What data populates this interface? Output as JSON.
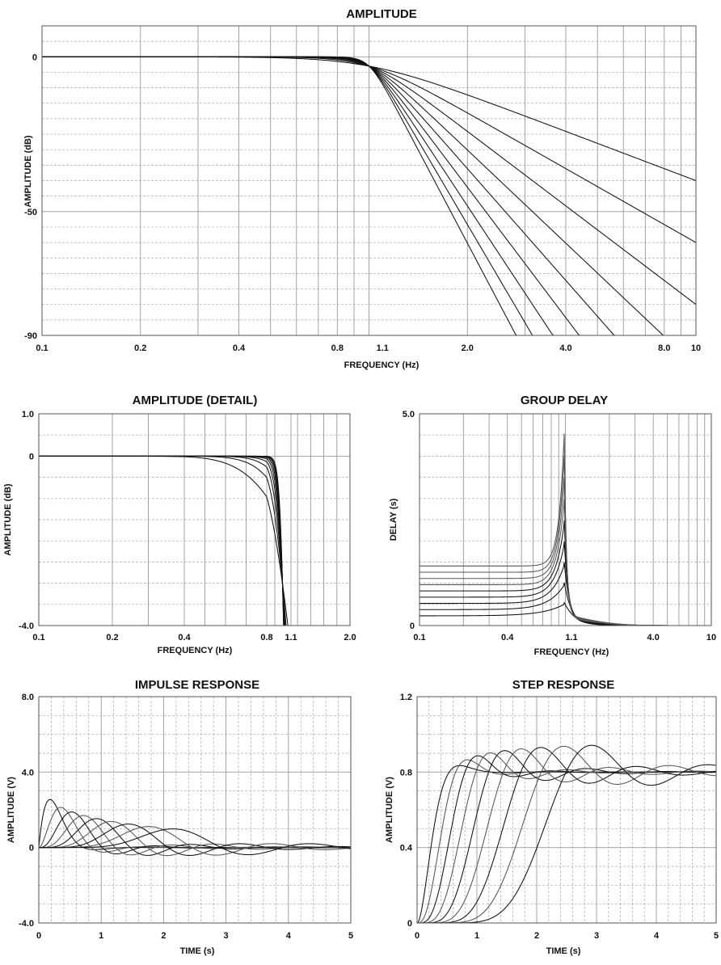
{
  "chart_data": [
    {
      "id": "amplitude",
      "type": "line",
      "title": "AMPLITUDE",
      "xlabel": "FREQUENCY (Hz)",
      "ylabel": "AMPLITUDE (dB)",
      "xscale": "log",
      "xlim": [
        0.1,
        10
      ],
      "ylim": [
        -90,
        10
      ],
      "x_ticks": [
        "0.1",
        "0.2",
        "0.4",
        "0.8",
        "1.1",
        "2.0",
        "4.0",
        "8.0",
        "10"
      ],
      "y_ticks": [
        "0",
        "-50",
        "-90"
      ],
      "grid": true,
      "series_orders": [
        2,
        3,
        4,
        5,
        6,
        7,
        8,
        9,
        10
      ]
    },
    {
      "id": "amplitude_detail",
      "type": "line",
      "title": "AMPLITUDE (DETAIL)",
      "xlabel": "FREQUENCY (Hz)",
      "ylabel": "AMPLITUDE (dB)",
      "xscale": "linear",
      "xlim": [
        0.1,
        2.0
      ],
      "ylim": [
        -4.0,
        1.0
      ],
      "x_ticks": [
        "0.1",
        "0.2",
        "0.4",
        "0.8",
        "1.1",
        "2.0"
      ],
      "y_ticks": [
        "1.0",
        "0",
        "-4.0"
      ],
      "grid": true,
      "series_orders": [
        2,
        3,
        4,
        5,
        6,
        7,
        8,
        9,
        10
      ]
    },
    {
      "id": "group_delay",
      "type": "line",
      "title": "GROUP DELAY",
      "xlabel": "FREQUENCY (Hz)",
      "ylabel": "DELAY (s)",
      "xscale": "log",
      "xlim": [
        0.1,
        10
      ],
      "ylim": [
        0,
        5.0
      ],
      "x_ticks": [
        "0.1",
        "0.4",
        "1.1",
        "4.0",
        "10"
      ],
      "y_ticks": [
        "5.0",
        "0"
      ],
      "grid": true,
      "series_orders": [
        2,
        3,
        4,
        5,
        6,
        7,
        8,
        9,
        10
      ]
    },
    {
      "id": "impulse_response",
      "type": "line",
      "title": "IMPULSE RESPONSE",
      "xlabel": "TIME (s)",
      "ylabel": "AMPLITUDE (V)",
      "xscale": "linear",
      "xlim": [
        0,
        5
      ],
      "ylim": [
        -4.0,
        8.0
      ],
      "x_ticks": [
        "0",
        "1",
        "2",
        "3",
        "4",
        "5"
      ],
      "y_ticks": [
        "8.0",
        "4.0",
        "0",
        "-4.0"
      ],
      "grid": true,
      "series_orders": [
        2,
        3,
        4,
        5,
        6,
        7,
        8,
        9,
        10
      ]
    },
    {
      "id": "step_response",
      "type": "line",
      "title": "STEP RESPONSE",
      "xlabel": "TIME (s)",
      "ylabel": "AMPLITUDE (V)",
      "xscale": "linear",
      "xlim": [
        0,
        5
      ],
      "ylim": [
        0,
        1.2
      ],
      "x_ticks": [
        "0",
        "1",
        "2",
        "3",
        "4",
        "5"
      ],
      "y_ticks": [
        "1.2",
        "0.8",
        "0.4",
        "0"
      ],
      "grid": true,
      "series_orders": [
        2,
        3,
        4,
        5,
        6,
        7,
        8,
        9,
        10
      ]
    }
  ]
}
